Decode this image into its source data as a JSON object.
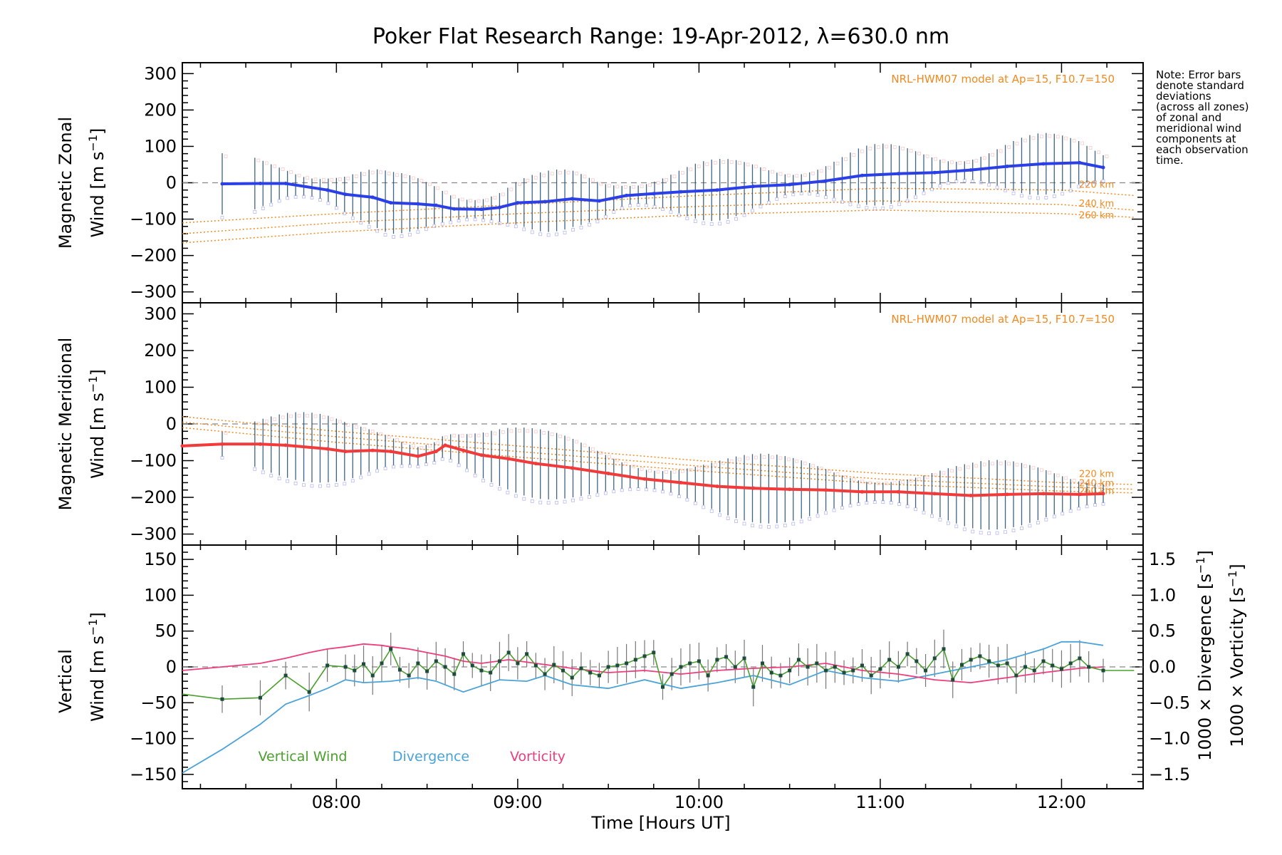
{
  "title": "Poker Flat Research Range: 19-Apr-2012, λ=630.0 nm",
  "note_lines": [
    "Note: Error bars",
    "denote standard",
    "deviations",
    "(across all zones)",
    "of zonal and",
    "meridional wind",
    "components at",
    "each observation",
    "time."
  ],
  "xlabel": "Time [Hours UT]",
  "x_ticks": [
    "08:00",
    "09:00",
    "10:00",
    "11:00",
    "12:00"
  ],
  "colors": {
    "zonal": "#2a3fe6",
    "meridional": "#f23a3a",
    "vertical": "#4aa02c",
    "divergence": "#4aa3d8",
    "vorticity": "#ee3c7c",
    "model": "#f08a20",
    "errorbar": "#1e4a6e"
  },
  "chart_data": [
    {
      "type": "line",
      "ylabel_top": "Magnetic Zonal",
      "ylabel_bottom": "Wind [m s-1]",
      "ylim": [
        -330,
        330
      ],
      "y_ticks": [
        "300",
        "200",
        "100",
        "0",
        "−100",
        "−200",
        "−300"
      ],
      "model_label": "NRL-HWM07 model at Ap=15, F10.7=150",
      "model_altitudes": [
        "220 km",
        "240 km",
        "260 km"
      ],
      "x": [
        7.37,
        7.58,
        7.72,
        7.95,
        8.05,
        8.2,
        8.3,
        8.45,
        8.55,
        8.65,
        8.8,
        8.9,
        9.0,
        9.15,
        9.3,
        9.45,
        9.6,
        9.75,
        9.9,
        10.1,
        10.3,
        10.5,
        10.7,
        10.9,
        11.1,
        11.3,
        11.5,
        11.7,
        11.9,
        12.1,
        12.23
      ],
      "series": [
        {
          "values": [
            -3,
            -2,
            -2,
            -20,
            -32,
            -40,
            -55,
            -58,
            -62,
            -72,
            -73,
            -68,
            -55,
            -52,
            -44,
            -50,
            -35,
            -30,
            -25,
            -20,
            -10,
            -5,
            5,
            20,
            25,
            28,
            35,
            45,
            52,
            55,
            42
          ]
        }
      ],
      "model_curves": [
        {
          "label": "220 km",
          "x": [
            7.15,
            8.0,
            9.0,
            10.0,
            11.0,
            12.0,
            12.4
          ],
          "values": [
            -110,
            -85,
            -60,
            -35,
            -15,
            -20,
            -35
          ]
        },
        {
          "label": "240 km",
          "x": [
            7.15,
            8.0,
            9.0,
            10.0,
            11.0,
            12.0,
            12.4
          ],
          "values": [
            -140,
            -110,
            -85,
            -65,
            -50,
            -60,
            -75
          ]
        },
        {
          "label": "260 km",
          "x": [
            7.15,
            8.0,
            9.0,
            10.0,
            11.0,
            12.0,
            12.4
          ],
          "values": [
            -165,
            -135,
            -110,
            -88,
            -75,
            -85,
            -95
          ]
        }
      ]
    },
    {
      "type": "line",
      "ylabel_top": "Magnetic Meridional",
      "ylabel_bottom": "Wind [m s-1]",
      "ylim": [
        -330,
        330
      ],
      "y_ticks": [
        "300",
        "200",
        "100",
        "0",
        "−100",
        "−200",
        "−300"
      ],
      "model_label": "NRL-HWM07 model at Ap=15, F10.7=150",
      "model_altitudes": [
        "220 km",
        "240 km",
        "260 km"
      ],
      "x": [
        7.15,
        7.37,
        7.58,
        7.72,
        7.95,
        8.05,
        8.2,
        8.3,
        8.45,
        8.55,
        8.6,
        8.7,
        8.8,
        8.95,
        9.1,
        9.3,
        9.5,
        9.7,
        9.9,
        10.1,
        10.3,
        10.5,
        10.7,
        10.9,
        11.1,
        11.3,
        11.5,
        11.7,
        11.9,
        12.1,
        12.23
      ],
      "series": [
        {
          "values": [
            -60,
            -55,
            -55,
            -58,
            -68,
            -75,
            -72,
            -75,
            -88,
            -75,
            -58,
            -72,
            -85,
            -95,
            -108,
            -120,
            -135,
            -150,
            -160,
            -170,
            -175,
            -178,
            -180,
            -185,
            -185,
            -190,
            -195,
            -192,
            -190,
            -192,
            -190
          ]
        }
      ],
      "model_curves": [
        {
          "label": "220 km",
          "x": [
            7.15,
            8.0,
            9.0,
            10.0,
            11.0,
            12.0,
            12.4
          ],
          "values": [
            20,
            -20,
            -60,
            -100,
            -135,
            -160,
            -165
          ]
        },
        {
          "label": "240 km",
          "x": [
            7.15,
            8.0,
            9.0,
            10.0,
            11.0,
            12.0,
            12.4
          ],
          "values": [
            5,
            -35,
            -75,
            -115,
            -150,
            -172,
            -178
          ]
        },
        {
          "label": "260 km",
          "x": [
            7.15,
            8.0,
            9.0,
            10.0,
            11.0,
            12.0,
            12.4
          ],
          "values": [
            -10,
            -50,
            -90,
            -128,
            -163,
            -183,
            -188
          ]
        }
      ]
    },
    {
      "type": "line",
      "ylabel_top": "Vertical",
      "ylabel_bottom": "Wind [m s-1]",
      "ylim": [
        -170,
        170
      ],
      "y_ticks": [
        "150",
        "100",
        "50",
        "0",
        "−50",
        "−100",
        "−150"
      ],
      "y2_ticks": [
        "1.5",
        "1.0",
        "0.5",
        "0.0",
        "−0.5",
        "−1.0",
        "−1.5"
      ],
      "y2_label_divergence": "1000 × Divergence [s-1]",
      "y2_label_vorticity": "1000 × Vorticity [s-1]",
      "legend": [
        "Vertical Wind",
        "Divergence",
        "Vorticity"
      ],
      "vertical_wind": {
        "x": [
          7.15,
          7.37,
          7.58,
          7.72,
          7.85,
          7.95,
          8.05,
          8.1,
          8.15,
          8.2,
          8.25,
          8.3,
          8.35,
          8.4,
          8.45,
          8.5,
          8.55,
          8.6,
          8.65,
          8.7,
          8.75,
          8.8,
          8.85,
          8.9,
          8.95,
          9.0,
          9.05,
          9.1,
          9.15,
          9.2,
          9.25,
          9.3,
          9.35,
          9.4,
          9.45,
          9.5,
          9.55,
          9.6,
          9.65,
          9.7,
          9.75,
          9.8,
          9.85,
          9.9,
          9.95,
          10.0,
          10.05,
          10.1,
          10.15,
          10.2,
          10.25,
          10.3,
          10.35,
          10.4,
          10.45,
          10.5,
          10.55,
          10.6,
          10.65,
          10.7,
          10.75,
          10.8,
          10.85,
          10.9,
          10.95,
          11.0,
          11.05,
          11.1,
          11.15,
          11.2,
          11.25,
          11.3,
          11.35,
          11.4,
          11.45,
          11.5,
          11.55,
          11.6,
          11.65,
          11.7,
          11.75,
          11.8,
          11.85,
          11.9,
          11.95,
          12.0,
          12.05,
          12.1,
          12.15,
          12.23,
          12.4
        ],
        "values": [
          -38,
          -45,
          -43,
          -12,
          -35,
          2,
          0,
          -5,
          4,
          -12,
          5,
          25,
          -4,
          -12,
          5,
          -6,
          8,
          0,
          -10,
          18,
          2,
          -5,
          -8,
          8,
          20,
          5,
          18,
          2,
          -10,
          3,
          -5,
          -15,
          -2,
          -8,
          -12,
          0,
          2,
          5,
          10,
          15,
          20,
          -28,
          -10,
          0,
          5,
          8,
          -12,
          10,
          14,
          0,
          12,
          -28,
          5,
          -8,
          -12,
          -5,
          10,
          0,
          5,
          -5,
          0,
          -8,
          -5,
          2,
          -12,
          -3,
          10,
          0,
          18,
          8,
          -5,
          12,
          25,
          -18,
          3,
          10,
          15,
          8,
          2,
          5,
          -12,
          0,
          -5,
          8,
          2,
          -3,
          5,
          12,
          0,
          -5,
          -5
        ]
      },
      "divergence": {
        "x": [
          7.15,
          7.37,
          7.58,
          7.72,
          7.85,
          7.95,
          8.05,
          8.15,
          8.3,
          8.45,
          8.55,
          8.7,
          8.9,
          9.05,
          9.15,
          9.3,
          9.5,
          9.7,
          9.9,
          10.1,
          10.3,
          10.5,
          10.7,
          10.9,
          11.1,
          11.3,
          11.5,
          11.7,
          11.9,
          12.0,
          12.1,
          12.23
        ],
        "values": [
          -1.48,
          -1.15,
          -0.8,
          -0.52,
          -0.4,
          -0.3,
          -0.18,
          -0.22,
          -0.2,
          -0.15,
          -0.2,
          -0.35,
          -0.18,
          -0.2,
          -0.12,
          -0.25,
          -0.3,
          -0.18,
          -0.3,
          -0.22,
          -0.12,
          -0.25,
          -0.05,
          -0.15,
          -0.2,
          -0.1,
          0.0,
          0.1,
          0.25,
          0.35,
          0.35,
          0.3
        ]
      },
      "vorticity": {
        "x": [
          7.15,
          7.37,
          7.58,
          7.72,
          7.85,
          7.95,
          8.05,
          8.15,
          8.25,
          8.3,
          8.4,
          8.5,
          8.6,
          8.7,
          8.8,
          8.95,
          9.1,
          9.3,
          9.5,
          9.7,
          9.9,
          10.1,
          10.3,
          10.5,
          10.7,
          10.9,
          11.1,
          11.3,
          11.5,
          11.7,
          11.9,
          12.1,
          12.23
        ],
        "values": [
          -0.05,
          0.0,
          0.05,
          0.12,
          0.2,
          0.25,
          0.28,
          0.32,
          0.3,
          0.28,
          0.25,
          0.2,
          0.15,
          0.08,
          0.05,
          0.1,
          0.05,
          -0.02,
          -0.08,
          -0.05,
          -0.1,
          -0.05,
          -0.02,
          0.0,
          0.05,
          -0.05,
          -0.1,
          -0.18,
          -0.22,
          -0.15,
          -0.08,
          -0.02,
          0.0
        ]
      }
    }
  ]
}
